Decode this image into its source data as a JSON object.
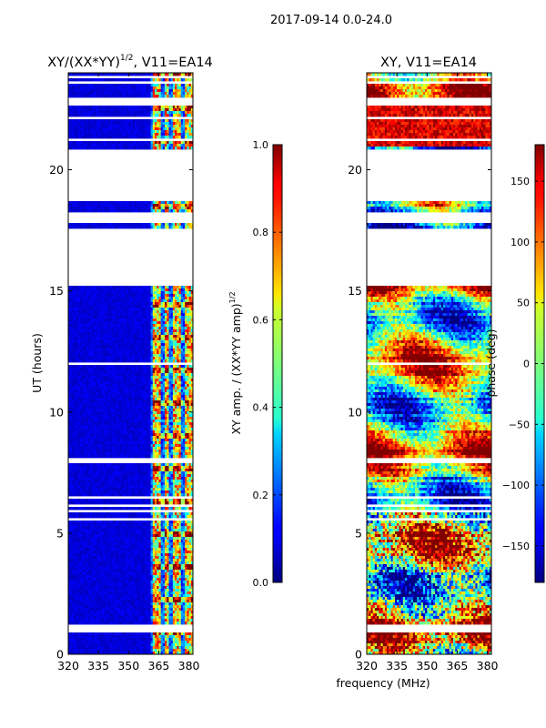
{
  "figure_title": "2017-09-14 0.0-24.0",
  "shared_xlabel": "frequency (MHz)",
  "chart_data": [
    {
      "type": "heatmap",
      "id": "amp",
      "title_main": "XY/(XX*YY)",
      "title_sup": "1/2",
      "title_tail": ", V11=EA14",
      "xlabel": "",
      "ylabel": "UT (hours)",
      "xlim": [
        320,
        382
      ],
      "ylim": [
        0,
        24
      ],
      "xticks": [
        320,
        335,
        350,
        365,
        380
      ],
      "yticks": [
        0,
        5,
        10,
        15,
        20
      ],
      "colorbar": {
        "cmap": "jet",
        "vmin": 0,
        "vmax": 1,
        "ticks": [
          "0.0",
          "0.2",
          "0.4",
          "0.6",
          "0.8",
          "1.0"
        ],
        "tick_values": [
          0,
          0.2,
          0.4,
          0.6,
          0.8,
          1.0
        ],
        "label_main": "XY amp. / (XX*YY amp)",
        "label_sup": "1/2"
      },
      "bright_channels_mhz": [
        363,
        365,
        369,
        373,
        375,
        379,
        381
      ],
      "data_gaps_hours": [
        [
          0.95,
          1.25
        ],
        [
          5.55,
          5.65
        ],
        [
          5.85,
          5.95
        ],
        [
          6.1,
          6.25
        ],
        [
          6.4,
          6.5
        ],
        [
          7.85,
          8.15
        ],
        [
          11.95,
          12.05
        ],
        [
          15.25,
          17.6
        ],
        [
          17.85,
          18.3
        ],
        [
          18.65,
          20.9
        ],
        [
          21.15,
          21.25
        ],
        [
          22.05,
          22.15
        ],
        [
          22.65,
          22.95
        ],
        [
          23.55,
          23.65
        ],
        [
          23.75,
          23.9
        ]
      ]
    },
    {
      "type": "heatmap",
      "id": "phase",
      "title_main": "XY, V11=EA14",
      "xlabel": "",
      "ylabel": "",
      "xlim": [
        320,
        382
      ],
      "ylim": [
        0,
        24
      ],
      "xticks": [
        320,
        335,
        350,
        365,
        380
      ],
      "yticks": [
        0,
        5,
        10,
        15,
        20
      ],
      "colorbar": {
        "cmap": "jet",
        "vmin": -180,
        "vmax": 180,
        "ticks": [
          "150",
          "100",
          "50",
          "0",
          "−50",
          "−100",
          "−150"
        ],
        "tick_values": [
          150,
          100,
          50,
          0,
          -50,
          -100,
          -150
        ],
        "label_main": "phase (deg)",
        "label_sup": ""
      },
      "data_gaps_hours": [
        [
          0.95,
          1.25
        ],
        [
          5.55,
          5.65
        ],
        [
          5.85,
          5.95
        ],
        [
          6.1,
          6.25
        ],
        [
          6.4,
          6.5
        ],
        [
          7.85,
          8.15
        ],
        [
          11.95,
          12.05
        ],
        [
          15.25,
          17.6
        ],
        [
          17.85,
          18.3
        ],
        [
          18.65,
          20.9
        ],
        [
          21.15,
          21.25
        ],
        [
          22.05,
          22.15
        ],
        [
          22.65,
          22.95
        ],
        [
          23.55,
          23.65
        ],
        [
          23.75,
          23.9
        ]
      ]
    }
  ]
}
